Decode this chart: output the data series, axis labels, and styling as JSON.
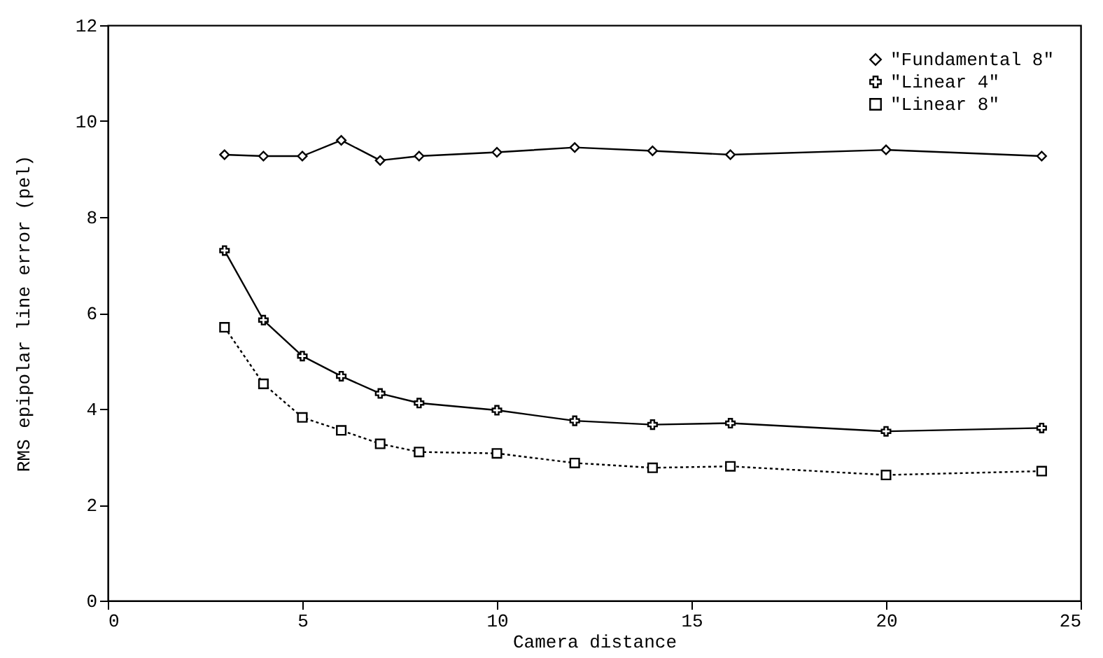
{
  "chart_data": {
    "type": "line",
    "xlabel": "Camera distance",
    "ylabel": "RMS epipolar line error (pel)",
    "x": [
      3,
      4,
      5,
      6,
      7,
      8,
      10,
      12,
      14,
      16,
      20,
      24
    ],
    "series": [
      {
        "name": "\"Fundamental 8\"",
        "color": "#000000",
        "marker": "diamond",
        "line_style": "solid",
        "values": [
          9.3,
          9.27,
          9.27,
          9.6,
          9.18,
          9.27,
          9.35,
          9.45,
          9.38,
          9.3,
          9.4,
          9.27
        ]
      },
      {
        "name": "\"Linear 4\"",
        "color": "#000000",
        "marker": "cross",
        "line_style": "solid",
        "values": [
          7.3,
          5.85,
          5.1,
          4.68,
          4.32,
          4.12,
          3.97,
          3.75,
          3.67,
          3.7,
          3.53,
          3.6
        ]
      },
      {
        "name": "\"Linear 8\"",
        "color": "#000000",
        "marker": "square",
        "line_style": "dotted",
        "values": [
          5.7,
          4.52,
          3.82,
          3.55,
          3.27,
          3.1,
          3.07,
          2.87,
          2.77,
          2.8,
          2.62,
          2.7
        ]
      }
    ],
    "xlim": [
      0,
      25
    ],
    "xticks": [
      0,
      5,
      10,
      15,
      20,
      25
    ],
    "ylim": [
      0,
      12
    ],
    "yticks": [
      0,
      2,
      4,
      6,
      8,
      10,
      12
    ],
    "grid": false,
    "legend": "top right"
  }
}
